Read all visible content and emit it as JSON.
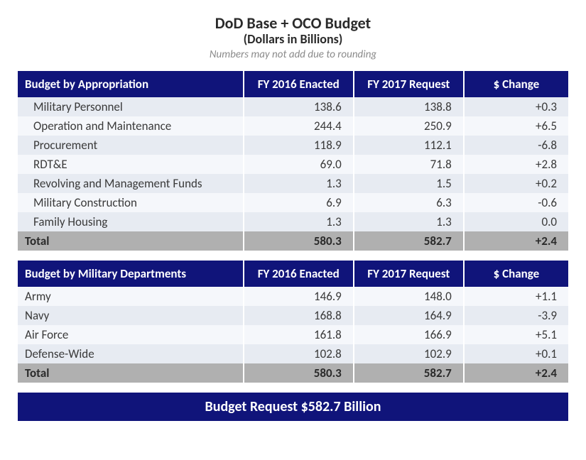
{
  "title": {
    "main": "DoD Base + OCO Budget",
    "sub": "(Dollars in Billions)",
    "note": "Numbers may not add due to rounding"
  },
  "colors": {
    "header_bg": "#10147a",
    "header_text": "#ffffff",
    "row_even": "#e7ebf2",
    "row_odd": "#f5f7fb",
    "total_bg": "#b0b0b0",
    "page_bg": "#ffffff",
    "text": "#3a3a3a",
    "note_text": "#8a8a8a"
  },
  "columns": [
    "",
    "FY 2016 Enacted",
    "FY 2017 Request",
    "$ Change"
  ],
  "table1": {
    "heading": "Budget by Appropriation",
    "rows": [
      {
        "label": "Military Personnel",
        "fy16": "138.6",
        "fy17": "138.8",
        "chg": "+0.3"
      },
      {
        "label": "Operation and Maintenance",
        "fy16": "244.4",
        "fy17": "250.9",
        "chg": "+6.5"
      },
      {
        "label": "Procurement",
        "fy16": "118.9",
        "fy17": "112.1",
        "chg": "-6.8"
      },
      {
        "label": "RDT&E",
        "fy16": "69.0",
        "fy17": "71.8",
        "chg": "+2.8"
      },
      {
        "label": "Revolving and Management Funds",
        "fy16": "1.3",
        "fy17": "1.5",
        "chg": "+0.2"
      },
      {
        "label": "Military Construction",
        "fy16": "6.9",
        "fy17": "6.3",
        "chg": "-0.6"
      },
      {
        "label": "Family Housing",
        "fy16": "1.3",
        "fy17": "1.3",
        "chg": "0.0"
      }
    ],
    "total": {
      "label": "Total",
      "fy16": "580.3",
      "fy17": "582.7",
      "chg": "+2.4"
    }
  },
  "table2": {
    "heading": "Budget by Military Departments",
    "rows": [
      {
        "label": "Army",
        "fy16": "146.9",
        "fy17": "148.0",
        "chg": "+1.1"
      },
      {
        "label": "Navy",
        "fy16": "168.8",
        "fy17": "164.9",
        "chg": "-3.9"
      },
      {
        "label": "Air Force",
        "fy16": "161.8",
        "fy17": "166.9",
        "chg": "+5.1"
      },
      {
        "label": "Defense-Wide",
        "fy16": "102.8",
        "fy17": "102.9",
        "chg": "+0.1"
      }
    ],
    "total": {
      "label": "Total",
      "fy16": "580.3",
      "fy17": "582.7",
      "chg": "+2.4"
    }
  },
  "footer": "Budget Request $582.7 Billion"
}
